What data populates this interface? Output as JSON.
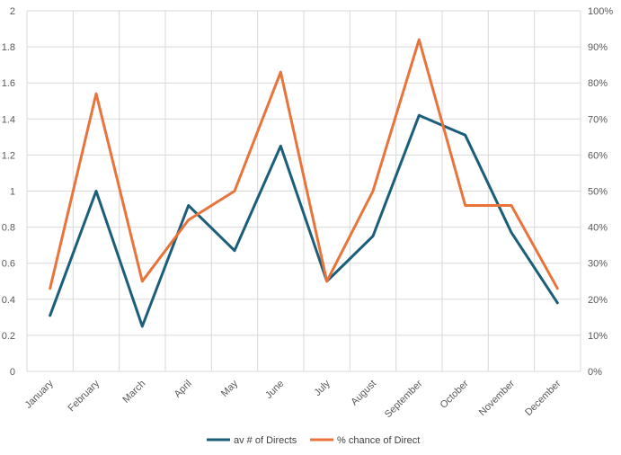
{
  "chart_data": {
    "type": "line",
    "title": "",
    "categories": [
      "January",
      "February",
      "March",
      "April",
      "May",
      "June",
      "July",
      "August",
      "September",
      "October",
      "November",
      "December"
    ],
    "series": [
      {
        "name": "av # of Directs",
        "axis": "left",
        "color": "#1b5e7a",
        "values": [
          0.31,
          1.0,
          0.25,
          0.92,
          0.67,
          1.25,
          0.5,
          0.75,
          1.42,
          1.31,
          0.77,
          0.38
        ]
      },
      {
        "name": "% chance of Direct",
        "axis": "right",
        "color": "#e8743b",
        "values": [
          0.23,
          0.77,
          0.25,
          0.42,
          0.5,
          0.83,
          0.25,
          0.5,
          0.92,
          0.46,
          0.46,
          0.23
        ]
      }
    ],
    "y_left": {
      "ylim": [
        0,
        2
      ],
      "ticks": [
        0,
        0.2,
        0.4,
        0.6,
        0.8,
        1,
        1.2,
        1.4,
        1.6,
        1.8,
        2
      ],
      "tick_labels": [
        "0",
        "0.2",
        "0.4",
        "0.6",
        "0.8",
        "1",
        "1.2",
        "1.4",
        "1.6",
        "1.8",
        "2"
      ]
    },
    "y_right": {
      "ylim": [
        0,
        1
      ],
      "ticks": [
        0,
        0.1,
        0.2,
        0.3,
        0.4,
        0.5,
        0.6,
        0.7,
        0.8,
        0.9,
        1
      ],
      "tick_labels": [
        "0%",
        "10%",
        "20%",
        "30%",
        "40%",
        "50%",
        "60%",
        "70%",
        "80%",
        "90%",
        "100%"
      ]
    },
    "grid": true,
    "legend_position": "bottom",
    "xlabel": "",
    "ylabel": ""
  }
}
